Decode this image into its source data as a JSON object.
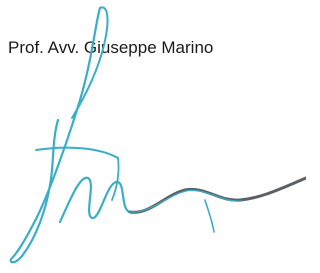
{
  "signature_block": {
    "name": "Prof. Avv. Giuseppe Marino"
  }
}
